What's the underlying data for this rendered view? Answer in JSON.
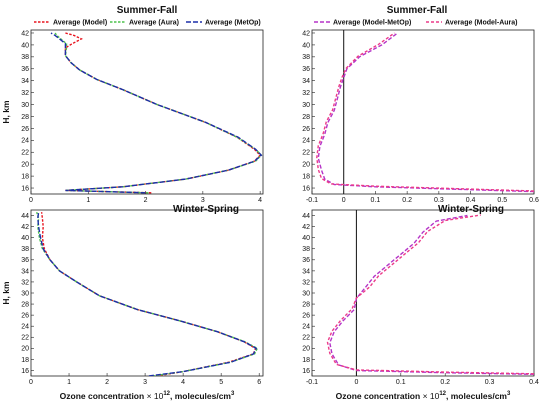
{
  "chart_data": [
    {
      "type": "line",
      "title": "Summer-Fall",
      "xlabel": "",
      "ylabel": "H, km",
      "xlim": [
        0,
        4.05
      ],
      "ylim": [
        15,
        42.5
      ],
      "xticks": [
        0,
        1,
        2,
        3,
        4
      ],
      "yticks": [
        16,
        18,
        20,
        22,
        24,
        26,
        28,
        30,
        32,
        34,
        36,
        38,
        40,
        42
      ],
      "series": [
        {
          "name": "Average  (Model)",
          "color": "#e8141e",
          "dash": "2.5,1.5",
          "x": [
            2.1,
            1.3,
            0.6,
            1.6,
            2.7,
            3.45,
            3.9,
            4.0,
            3.9,
            3.6,
            3.05,
            2.2,
            1.6,
            1.15,
            0.85,
            0.7,
            0.6,
            0.6,
            0.72,
            0.88,
            0.75,
            0.6
          ],
          "y": [
            15.2,
            15.4,
            15.6,
            16.2,
            17.5,
            19.0,
            20.5,
            21.5,
            22.5,
            24.5,
            27.0,
            30.0,
            32.5,
            34.2,
            35.8,
            37.0,
            38.2,
            39.5,
            40.2,
            41.0,
            41.6,
            42.0
          ]
        },
        {
          "name": "Average  (Aura)",
          "color": "#4cc24c",
          "dash": "2.5,1.5",
          "x": [
            2.05,
            1.3,
            0.6,
            1.6,
            2.7,
            3.45,
            3.92,
            4.02,
            3.92,
            3.6,
            3.05,
            2.2,
            1.6,
            1.15,
            0.85,
            0.7,
            0.6,
            0.62,
            0.62,
            0.52,
            0.45,
            0.42
          ],
          "y": [
            15.2,
            15.4,
            15.6,
            16.2,
            17.5,
            19.0,
            20.5,
            21.5,
            22.5,
            24.5,
            27.0,
            30.0,
            32.5,
            34.2,
            35.8,
            37.0,
            38.2,
            39.5,
            40.2,
            41.0,
            41.6,
            42.0
          ]
        },
        {
          "name": "Average  (MetOp)",
          "color": "#1c2fa8",
          "dash": "5,2",
          "x": [
            2.0,
            1.3,
            0.6,
            1.6,
            2.7,
            3.45,
            3.9,
            4.02,
            3.92,
            3.62,
            3.05,
            2.2,
            1.6,
            1.15,
            0.85,
            0.7,
            0.6,
            0.6,
            0.6,
            0.5,
            0.42,
            0.35
          ],
          "y": [
            15.2,
            15.4,
            15.6,
            16.2,
            17.5,
            19.0,
            20.5,
            21.5,
            22.5,
            24.5,
            27.0,
            30.0,
            32.5,
            34.2,
            35.8,
            37.0,
            38.2,
            39.5,
            40.2,
            41.0,
            41.6,
            42.0
          ]
        }
      ]
    },
    {
      "type": "line",
      "title": "Summer-Fall",
      "xlabel": "",
      "ylabel": "",
      "xlim": [
        -0.1,
        0.6
      ],
      "ylim": [
        15,
        42.5
      ],
      "xticks": [
        -0.1,
        0,
        0.1,
        0.2,
        0.3,
        0.4,
        0.5,
        0.6
      ],
      "yticks": [
        16,
        18,
        20,
        22,
        24,
        26,
        28,
        30,
        32,
        34,
        36,
        38,
        40,
        42
      ],
      "vline_x": 0,
      "series": [
        {
          "name": "Average (Model-MetOp)",
          "color": "#b534c8",
          "dash": "4,2",
          "x": [
            0.6,
            0.35,
            0.1,
            -0.03,
            -0.06,
            -0.07,
            -0.08,
            -0.075,
            -0.06,
            -0.05,
            -0.03,
            -0.02,
            -0.01,
            0.0,
            0.01,
            0.05,
            0.12,
            0.17
          ],
          "y": [
            15.4,
            15.8,
            16.2,
            16.6,
            17.5,
            19.0,
            21.0,
            23.0,
            25.0,
            27.0,
            29.0,
            31.0,
            33.0,
            34.5,
            36.0,
            38.0,
            40.0,
            42.0
          ]
        },
        {
          "name": "Average (Model-Aura)",
          "color": "#ec3a88",
          "dash": "3,2",
          "x": [
            0.6,
            0.35,
            0.1,
            -0.04,
            -0.07,
            -0.08,
            -0.085,
            -0.08,
            -0.065,
            -0.055,
            -0.035,
            -0.025,
            -0.015,
            -0.005,
            0.008,
            0.045,
            0.11,
            0.16
          ],
          "y": [
            15.5,
            15.9,
            16.3,
            16.7,
            17.6,
            19.1,
            21.1,
            23.1,
            25.1,
            27.1,
            29.1,
            31.1,
            33.1,
            34.6,
            36.1,
            38.1,
            40.1,
            42.0
          ]
        }
      ]
    },
    {
      "type": "line",
      "title": "Winter-Spring",
      "xlabel": "Ozone concentration",
      "xlabel_mid": "× 10",
      "xlabel_exp": "12",
      "xlabel_tail": ", molecules/cm",
      "xlabel_exp2": "3",
      "ylabel": "H, km",
      "xlim": [
        0,
        6.1
      ],
      "ylim": [
        15,
        45
      ],
      "xticks": [
        0,
        1,
        2,
        3,
        4,
        5,
        6
      ],
      "yticks": [
        16,
        18,
        20,
        22,
        24,
        26,
        28,
        30,
        32,
        34,
        36,
        38,
        40,
        42,
        44
      ],
      "series": [
        {
          "name": "Average  (Model)",
          "color": "#e8141e",
          "dash": "2.5,1.5",
          "x": [
            3.3,
            4.0,
            5.2,
            5.85,
            5.9,
            5.6,
            4.9,
            3.9,
            2.8,
            1.8,
            1.2,
            0.75,
            0.5,
            0.35,
            0.3,
            0.32,
            0.3,
            0.28
          ],
          "y": [
            15.0,
            15.8,
            17.5,
            19.0,
            20.0,
            21.2,
            23.0,
            25.0,
            27.0,
            29.5,
            32.0,
            34.0,
            36.0,
            38.0,
            40.0,
            42.0,
            43.5,
            44.6
          ]
        },
        {
          "name": "Average  (Aura)",
          "color": "#4cc24c",
          "dash": "2.5,1.5",
          "x": [
            3.2,
            4.0,
            5.25,
            5.88,
            5.95,
            5.62,
            4.9,
            3.9,
            2.8,
            1.8,
            1.2,
            0.75,
            0.5,
            0.3,
            0.22,
            0.18,
            0.2,
            0.15
          ],
          "y": [
            15.0,
            15.8,
            17.5,
            19.0,
            20.0,
            21.2,
            23.0,
            25.0,
            27.0,
            29.5,
            32.0,
            34.0,
            36.0,
            38.0,
            40.0,
            42.0,
            43.5,
            44.6
          ]
        },
        {
          "name": "Average  (MetOp)",
          "color": "#1c2fa8",
          "dash": "5,2",
          "x": [
            3.1,
            4.0,
            5.25,
            5.85,
            5.92,
            5.6,
            4.9,
            3.9,
            2.8,
            1.8,
            1.2,
            0.75,
            0.5,
            0.32,
            0.25,
            0.2,
            0.18,
            0.2
          ],
          "y": [
            15.0,
            15.8,
            17.5,
            19.0,
            20.0,
            21.2,
            23.0,
            25.0,
            27.0,
            29.5,
            32.0,
            34.0,
            36.0,
            38.0,
            40.0,
            42.0,
            43.5,
            44.6
          ]
        }
      ]
    },
    {
      "type": "line",
      "title": "Winter-Spring",
      "xlabel": "Ozone concentration",
      "xlabel_mid": "× 10",
      "xlabel_exp": "12",
      "xlabel_tail": ", molecules/cm",
      "xlabel_exp2": "3",
      "ylabel": "",
      "xlim": [
        -0.1,
        0.4
      ],
      "ylim": [
        15,
        45
      ],
      "xticks": [
        -0.1,
        0,
        0.1,
        0.2,
        0.3,
        0.4
      ],
      "yticks": [
        16,
        18,
        20,
        22,
        24,
        26,
        28,
        30,
        32,
        34,
        36,
        38,
        40,
        42,
        44
      ],
      "vline_x": 0,
      "series": [
        {
          "name": "Average (Model-MetOp)",
          "color": "#b534c8",
          "dash": "4,2",
          "x": [
            0.4,
            0.2,
            0.0,
            -0.04,
            -0.055,
            -0.06,
            -0.05,
            -0.03,
            -0.005,
            0.0,
            0.02,
            0.04,
            0.07,
            0.1,
            0.13,
            0.15,
            0.18,
            0.25
          ],
          "y": [
            15.3,
            15.6,
            16.0,
            17.0,
            19.0,
            21.0,
            23.0,
            25.0,
            27.0,
            29.0,
            31.0,
            33.0,
            35.0,
            37.0,
            39.0,
            41.0,
            43.0,
            44.0
          ]
        },
        {
          "name": "Average (Model-Aura)",
          "color": "#ec3a88",
          "dash": "3,2",
          "x": [
            0.4,
            0.2,
            0.0,
            -0.045,
            -0.06,
            -0.065,
            -0.055,
            -0.035,
            -0.01,
            0.0,
            0.03,
            0.05,
            0.08,
            0.11,
            0.14,
            0.16,
            0.2,
            0.28
          ],
          "y": [
            15.4,
            15.7,
            16.1,
            17.1,
            19.1,
            21.1,
            23.1,
            25.1,
            27.1,
            29.1,
            31.1,
            33.1,
            35.1,
            37.1,
            39.1,
            41.1,
            43.1,
            44.1
          ]
        }
      ]
    }
  ]
}
